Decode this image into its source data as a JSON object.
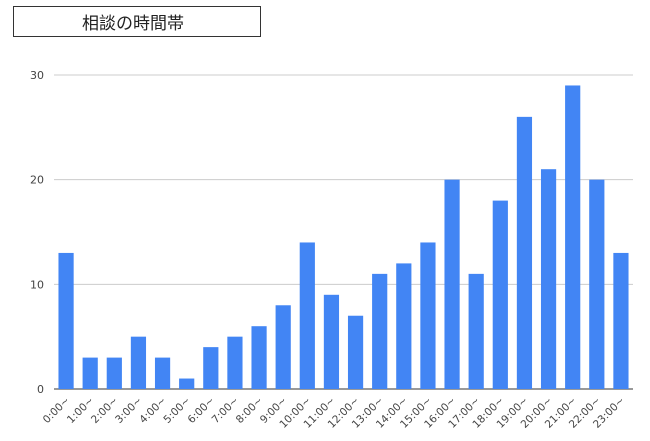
{
  "chart_data": {
    "type": "bar",
    "title": "相談の時間帯",
    "xlabel": "",
    "ylabel": "",
    "ylim": [
      0,
      30
    ],
    "yticks": [
      0,
      10,
      20,
      30
    ],
    "grid": true,
    "legend": "none",
    "bar_color": "#4285F4",
    "categories": [
      "0:00~",
      "1:00~",
      "2:00~",
      "3:00~",
      "4:00~",
      "5:00~",
      "6:00~",
      "7:00~",
      "8:00~",
      "9:00~",
      "10:00~",
      "11:00~",
      "12:00~",
      "13:00~",
      "14:00~",
      "15:00~",
      "16:00~",
      "17:00~",
      "18:00~",
      "19:00~",
      "20:00~",
      "21:00~",
      "22:00~",
      "23:00~"
    ],
    "values": [
      13,
      3,
      3,
      5,
      3,
      1,
      4,
      5,
      6,
      8,
      14,
      9,
      7,
      11,
      12,
      14,
      20,
      11,
      18,
      26,
      21,
      29,
      20,
      13
    ]
  }
}
